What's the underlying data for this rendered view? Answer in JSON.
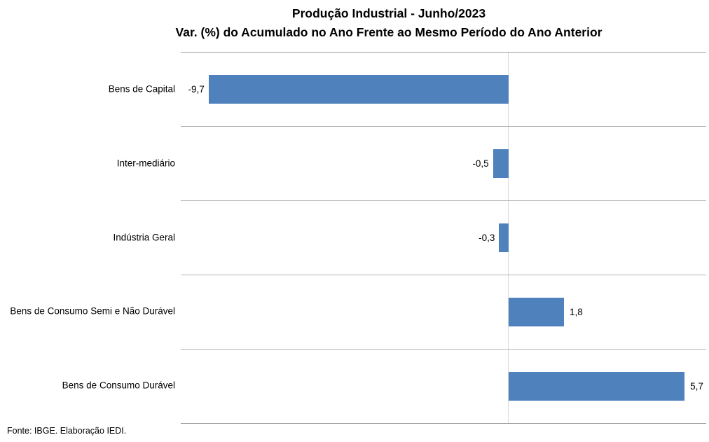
{
  "title": {
    "line1": "Produção Industrial - Junho/2023",
    "line2": "Var. (%) do Acumulado no Ano Frente ao Mesmo Período do Ano Anterior"
  },
  "footer": "Fonte: IBGE. Elaboração IEDI.",
  "colors": {
    "bar": "#4f81bd",
    "plot_border": "#9e9e9e",
    "row_separator": "#b3b3b3",
    "zero_line": "#d9d9d9",
    "text": "#000000",
    "background": "#ffffff"
  },
  "chart_data": {
    "type": "bar",
    "orientation": "horizontal",
    "title": "Produção Industrial - Junho/2023",
    "subtitle": "Var. (%) do Acumulado no Ano Frente ao Mesmo Período do Ano Anterior",
    "categories": [
      "Bens de Capital",
      "Inter-mediário",
      "Indústria Geral",
      "Bens de Consumo Semi e Não Durável",
      "Bens de Consumo Durável"
    ],
    "values": [
      -9.7,
      -0.5,
      -0.3,
      1.8,
      5.7
    ],
    "value_labels": [
      "-9,7",
      "-0,5",
      "-0,3",
      "1,8",
      "5,7"
    ],
    "xlabel": "",
    "ylabel": "",
    "xlim": [
      -10.6,
      6.4
    ],
    "grid": "zero-line-only",
    "legend": "none",
    "data_label_position": "outside-end",
    "source_note": "Fonte: IBGE. Elaboração IEDI."
  }
}
